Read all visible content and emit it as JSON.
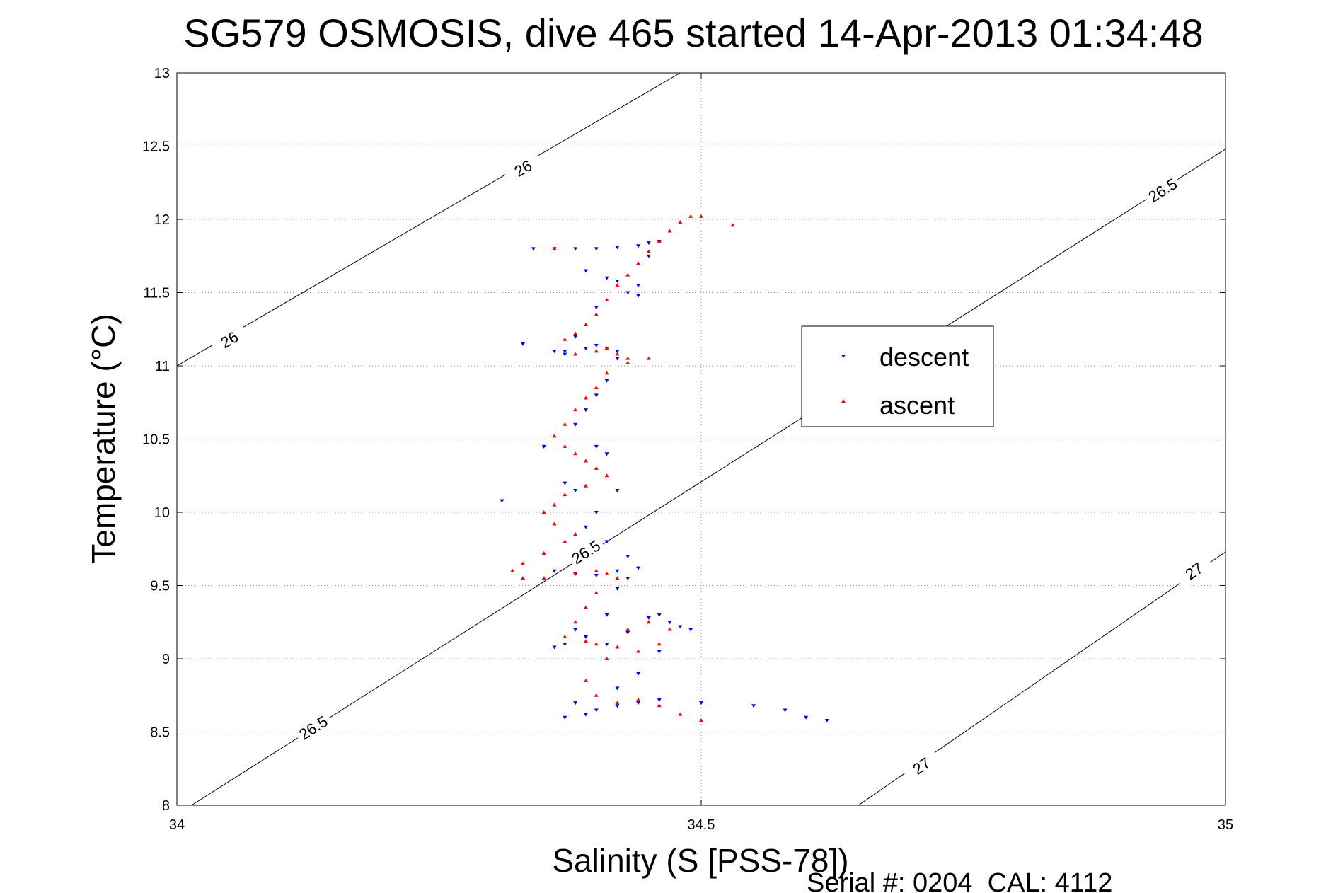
{
  "chart_data": {
    "type": "scatter",
    "title": "SG579 OSMOSIS, dive 465 started 14-Apr-2013 01:34:48",
    "xlabel": "Salinity (S [PSS-78])",
    "ylabel": "Temperature (°C)",
    "footer": "Serial #: 0204  CAL: 4112",
    "xlim": [
      34,
      35
    ],
    "ylim": [
      8,
      13
    ],
    "x_ticks": [
      34,
      34.5,
      35
    ],
    "x_tick_labels": [
      "34",
      "34.5",
      "35"
    ],
    "y_ticks": [
      8,
      8.5,
      9,
      9.5,
      10,
      10.5,
      11,
      11.5,
      12,
      12.5,
      13
    ],
    "y_tick_labels": [
      "8",
      "8.5",
      "9",
      "9.5",
      "10",
      "10.5",
      "11",
      "11.5",
      "12",
      "12.5",
      "13"
    ],
    "grid": true,
    "legend_placement": "right-center",
    "density_contours": [
      {
        "value": "26",
        "points": [
          [
            34.0,
            11.0
          ],
          [
            34.48,
            13.0
          ]
        ],
        "labels": [
          {
            "x": 34.05,
            "y": 11.18
          },
          {
            "x": 34.33,
            "y": 12.35
          }
        ]
      },
      {
        "value": "26.5",
        "points": [
          [
            34.014,
            8.0
          ],
          [
            35.0,
            12.48
          ]
        ],
        "labels": [
          {
            "x": 34.13,
            "y": 8.53
          },
          {
            "x": 34.39,
            "y": 9.73
          },
          {
            "x": 34.94,
            "y": 12.2
          }
        ]
      },
      {
        "value": "27",
        "points": [
          [
            34.65,
            8.0
          ],
          [
            35.0,
            9.73
          ]
        ],
        "labels": [
          {
            "x": 34.71,
            "y": 8.27
          },
          {
            "x": 34.97,
            "y": 9.6
          }
        ]
      }
    ],
    "series": [
      {
        "name": "descent",
        "color": "#0000ff",
        "marker": "triangle-down",
        "x": [
          34.34,
          34.36,
          34.38,
          34.4,
          34.42,
          34.44,
          34.45,
          34.46,
          34.45,
          34.44,
          34.43,
          34.42,
          34.41,
          34.4,
          34.38,
          34.37,
          34.36,
          34.37,
          34.39,
          34.4,
          34.41,
          34.42,
          34.42,
          34.41,
          34.4,
          34.39,
          34.38,
          34.4,
          34.41,
          34.37,
          34.38,
          34.42,
          34.4,
          34.39,
          34.41,
          34.43,
          34.36,
          34.38,
          34.4,
          34.42,
          34.44,
          34.43,
          34.41,
          34.38,
          34.37,
          34.39,
          34.41,
          34.43,
          34.45,
          34.46,
          34.47,
          34.48,
          34.49,
          34.46,
          34.44,
          34.42,
          34.38,
          34.37,
          34.39,
          34.4,
          34.42,
          34.44,
          34.46,
          34.5,
          34.55,
          34.58,
          34.6,
          34.62,
          34.39,
          34.44,
          34.33,
          34.31,
          34.35,
          34.42,
          34.36
        ],
        "y": [
          11.8,
          11.8,
          11.8,
          11.8,
          11.81,
          11.82,
          11.84,
          11.85,
          11.75,
          11.55,
          11.5,
          11.58,
          11.6,
          11.4,
          11.2,
          11.1,
          11.1,
          11.08,
          11.12,
          11.14,
          11.12,
          11.1,
          11.05,
          10.9,
          10.8,
          10.7,
          10.6,
          10.45,
          10.4,
          10.2,
          10.15,
          10.15,
          10.0,
          9.9,
          9.8,
          9.7,
          9.6,
          9.58,
          9.57,
          9.6,
          9.62,
          9.55,
          9.3,
          9.2,
          9.1,
          9.15,
          9.1,
          9.18,
          9.28,
          9.3,
          9.25,
          9.22,
          9.2,
          9.05,
          8.9,
          8.8,
          8.7,
          8.6,
          8.62,
          8.65,
          8.68,
          8.7,
          8.72,
          8.7,
          8.68,
          8.65,
          8.6,
          8.58,
          11.65,
          11.48,
          11.15,
          10.08,
          10.45,
          9.48,
          9.08
        ]
      },
      {
        "name": "ascent",
        "color": "#ff0000",
        "marker": "triangle-up",
        "x": [
          34.49,
          34.5,
          34.48,
          34.47,
          34.46,
          34.45,
          34.44,
          34.43,
          34.42,
          34.41,
          34.4,
          34.39,
          34.38,
          34.37,
          34.38,
          34.4,
          34.41,
          34.42,
          34.43,
          34.41,
          34.4,
          34.39,
          34.38,
          34.37,
          34.36,
          34.37,
          34.38,
          34.39,
          34.4,
          34.41,
          34.39,
          34.37,
          34.36,
          34.35,
          34.36,
          34.38,
          34.37,
          34.35,
          34.33,
          34.32,
          34.33,
          34.35,
          34.38,
          34.4,
          34.41,
          34.42,
          34.4,
          34.39,
          34.38,
          34.37,
          34.39,
          34.4,
          34.42,
          34.44,
          34.46,
          34.47,
          34.45,
          34.43,
          34.41,
          34.39,
          34.4,
          34.42,
          34.44,
          34.46,
          34.48,
          34.5,
          34.43,
          34.45,
          34.53,
          34.36
        ],
        "y": [
          12.02,
          12.02,
          11.98,
          11.92,
          11.85,
          11.78,
          11.7,
          11.62,
          11.55,
          11.45,
          11.35,
          11.28,
          11.22,
          11.18,
          11.08,
          11.1,
          11.12,
          11.08,
          11.05,
          10.95,
          10.85,
          10.78,
          10.7,
          10.6,
          10.52,
          10.45,
          10.4,
          10.35,
          10.3,
          10.25,
          10.18,
          10.12,
          10.05,
          10.0,
          9.92,
          9.85,
          9.8,
          9.72,
          9.65,
          9.6,
          9.55,
          9.55,
          9.58,
          9.6,
          9.58,
          9.55,
          9.45,
          9.35,
          9.25,
          9.15,
          9.12,
          9.1,
          9.08,
          9.05,
          9.1,
          9.2,
          9.25,
          9.2,
          9.0,
          8.85,
          8.75,
          8.7,
          8.72,
          8.68,
          8.62,
          8.58,
          11.02,
          11.05,
          11.96,
          11.8
        ]
      }
    ]
  }
}
